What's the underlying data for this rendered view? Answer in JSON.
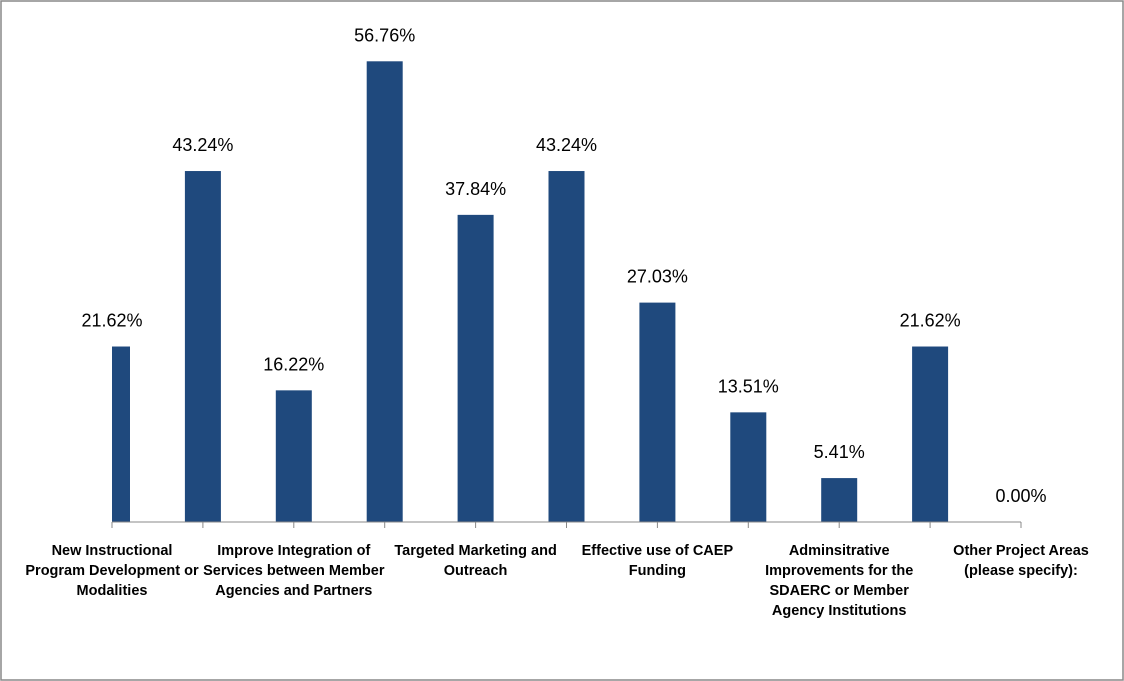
{
  "chart_data": {
    "type": "bar",
    "categories": [
      "New Instructional Program Development or Modalities",
      null,
      "Improve Integration of Services between Member Agencies and Partners",
      null,
      "Targeted Marketing and Outreach",
      null,
      "Effective use of CAEP Funding",
      null,
      "Adminsitrative Improvements for the SDAERC or Member Agency Institutions",
      null,
      "Other Project Areas (please specify):"
    ],
    "values": [
      21.62,
      43.24,
      16.22,
      56.76,
      37.84,
      43.24,
      27.03,
      13.51,
      5.41,
      21.62,
      0.0
    ],
    "value_labels": [
      "21.62%",
      "43.24%",
      "16.22%",
      "56.76%",
      "37.84%",
      "43.24%",
      "27.03%",
      "13.51%",
      "5.41%",
      "21.62%",
      "0.00%"
    ],
    "color": "#1f497d",
    "ylim": [
      0,
      60
    ]
  }
}
